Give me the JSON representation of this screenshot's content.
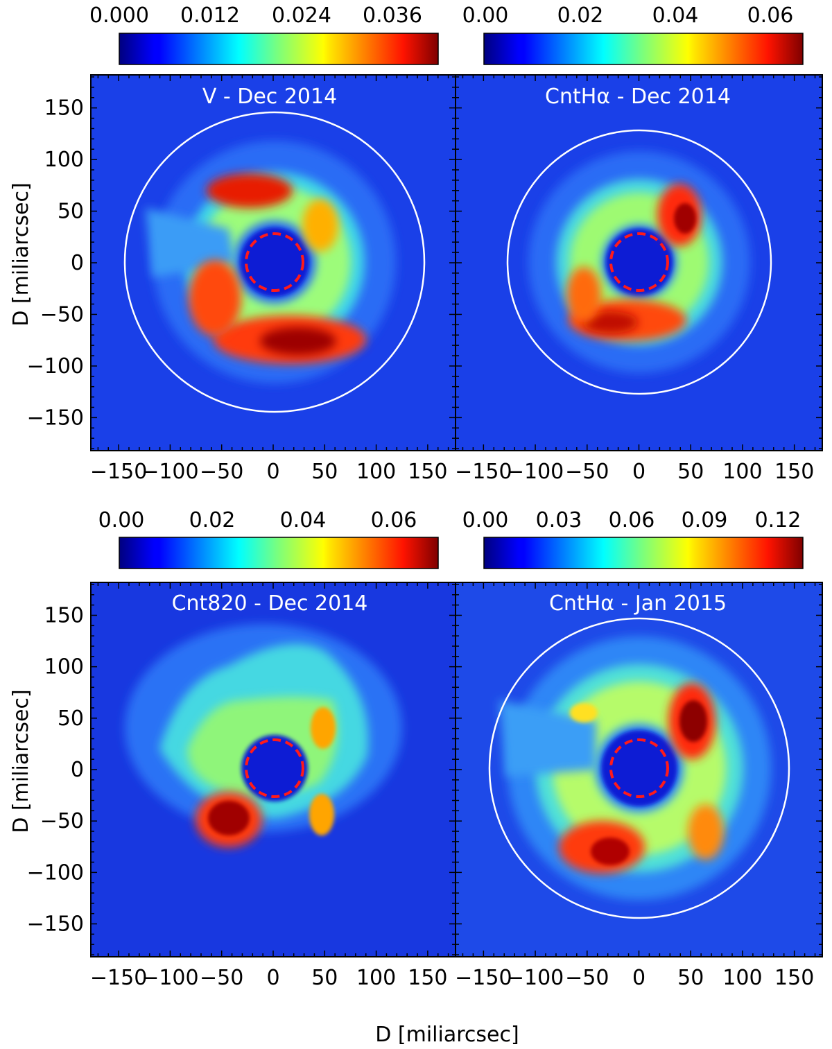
{
  "chart_data": {
    "type": "heatmap",
    "colormap": "jet",
    "shared_xlabel": "D [miliarcsec]",
    "shared_ylabel": "D [miliarcsec]",
    "xticks": [
      -150,
      -100,
      -50,
      0,
      50,
      100,
      150
    ],
    "yticks": [
      150,
      100,
      50,
      0,
      -50,
      -100,
      -150
    ],
    "xlim": [
      -177,
      177
    ],
    "ylim": [
      -182,
      182
    ],
    "panels": [
      {
        "title": "V - Dec 2014",
        "colorbar": {
          "ticks": [
            "0.000",
            "0.012",
            "0.024",
            "0.036"
          ],
          "vmax": 0.042
        },
        "circles": [
          {
            "r": 145,
            "style": "white solid"
          },
          {
            "r": 27,
            "style": "red dashed"
          }
        ],
        "features": [
          {
            "x": 15,
            "y": -75,
            "rx": 80,
            "ry": 25,
            "intensity": 0.038
          },
          {
            "x": -55,
            "y": -35,
            "rx": 30,
            "ry": 40,
            "intensity": 0.033
          },
          {
            "x": -25,
            "y": 70,
            "rx": 45,
            "ry": 18,
            "intensity": 0.034
          },
          {
            "x": 45,
            "y": 35,
            "rx": 20,
            "ry": 30,
            "intensity": 0.027
          }
        ]
      },
      {
        "title": "CntHα - Dec 2014",
        "colorbar": {
          "ticks": [
            "0.00",
            "0.02",
            "0.04",
            "0.06"
          ],
          "vmax": 0.067
        },
        "circles": [
          {
            "r": 127,
            "style": "white solid"
          },
          {
            "r": 27,
            "style": "red dashed"
          }
        ],
        "features": [
          {
            "x": 40,
            "y": 45,
            "rx": 22,
            "ry": 28,
            "intensity": 0.063
          },
          {
            "x": -15,
            "y": -60,
            "rx": 60,
            "ry": 22,
            "intensity": 0.056
          },
          {
            "x": -55,
            "y": -35,
            "rx": 20,
            "ry": 30,
            "intensity": 0.048
          }
        ]
      },
      {
        "title": "Cnt820 - Dec 2014",
        "colorbar": {
          "ticks": [
            "0.00",
            "0.02",
            "0.04",
            "0.06"
          ],
          "vmax": 0.07
        },
        "circles": [
          {
            "r": 27,
            "style": "red dashed"
          }
        ],
        "features": [
          {
            "x": -45,
            "y": -50,
            "rx": 30,
            "ry": 25,
            "intensity": 0.068
          },
          {
            "x": 50,
            "y": 40,
            "rx": 12,
            "ry": 20,
            "intensity": 0.043
          },
          {
            "x": 48,
            "y": -45,
            "rx": 12,
            "ry": 20,
            "intensity": 0.043
          }
        ]
      },
      {
        "title": "CntHα - Jan 2015",
        "colorbar": {
          "ticks": [
            "0.00",
            "0.03",
            "0.06",
            "0.09",
            "0.12"
          ],
          "vmax": 0.132
        },
        "circles": [
          {
            "r": 145,
            "style": "white solid"
          },
          {
            "r": 27,
            "style": "red dashed"
          }
        ],
        "features": [
          {
            "x": 50,
            "y": 45,
            "rx": 22,
            "ry": 30,
            "intensity": 0.13
          },
          {
            "x": -35,
            "y": -80,
            "rx": 40,
            "ry": 22,
            "intensity": 0.115
          },
          {
            "x": 65,
            "y": -60,
            "rx": 18,
            "ry": 20,
            "intensity": 0.095
          },
          {
            "x": -50,
            "y": 55,
            "rx": 15,
            "ry": 10,
            "intensity": 0.07
          }
        ]
      }
    ]
  }
}
